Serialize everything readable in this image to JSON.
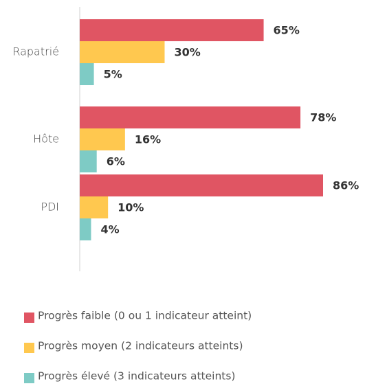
{
  "chart_data": {
    "type": "hbar",
    "categories": [
      "Rapatrié",
      "Hôte",
      "PDI"
    ],
    "series": [
      {
        "name": "Progrès faible (0 ou 1 indicateur atteint)",
        "color": "#e05563",
        "values": [
          65,
          78,
          86
        ],
        "value_labels": [
          "65%",
          "78%",
          "86%"
        ]
      },
      {
        "name": "Progrès moyen (2 indicateurs atteints)",
        "color": "#ffc84f",
        "values": [
          30,
          16,
          10
        ],
        "value_labels": [
          "30%",
          "16%",
          "10%"
        ]
      },
      {
        "name": "Progrès élevé (3 indicateurs atteints)",
        "color": "#7ecbc5",
        "values": [
          5,
          6,
          4
        ],
        "value_labels": [
          "5%",
          "6%",
          "4%"
        ]
      }
    ]
  }
}
